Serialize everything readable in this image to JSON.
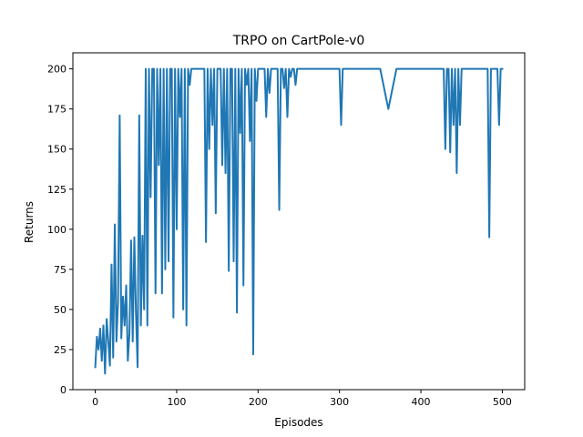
{
  "chart_data": {
    "type": "line",
    "title": "TRPO on CartPole-v0",
    "xlabel": "Episodes",
    "ylabel": "Returns",
    "xlim": [
      -27.5,
      527.5
    ],
    "ylim": [
      0,
      210
    ],
    "xticks": [
      0,
      100,
      200,
      300,
      400,
      500
    ],
    "yticks": [
      0,
      25,
      50,
      75,
      100,
      125,
      150,
      175,
      200
    ],
    "grid": false,
    "legend": "none",
    "series": [
      {
        "color": "#1f77b4",
        "x": [
          0,
          2,
          4,
          6,
          8,
          10,
          12,
          14,
          16,
          18,
          20,
          22,
          24,
          26,
          28,
          30,
          32,
          34,
          36,
          38,
          40,
          42,
          44,
          46,
          48,
          50,
          52,
          54,
          56,
          58,
          60,
          62,
          64,
          66,
          68,
          70,
          72,
          74,
          76,
          78,
          80,
          82,
          84,
          86,
          88,
          90,
          92,
          94,
          96,
          98,
          100,
          102,
          104,
          106,
          108,
          110,
          112,
          114,
          116,
          118,
          120,
          122,
          124,
          126,
          128,
          130,
          132,
          134,
          136,
          138,
          140,
          142,
          144,
          146,
          148,
          150,
          152,
          154,
          156,
          158,
          160,
          162,
          164,
          166,
          168,
          170,
          172,
          174,
          176,
          178,
          180,
          182,
          184,
          186,
          188,
          190,
          192,
          194,
          196,
          198,
          200,
          202,
          204,
          206,
          208,
          210,
          212,
          214,
          216,
          218,
          220,
          222,
          224,
          226,
          228,
          230,
          232,
          234,
          236,
          238,
          240,
          242,
          244,
          246,
          248,
          250,
          252,
          254,
          256,
          258,
          260,
          262,
          264,
          266,
          268,
          270,
          272,
          274,
          276,
          278,
          280,
          282,
          284,
          286,
          288,
          290,
          292,
          294,
          296,
          298,
          300,
          302,
          304,
          306,
          308,
          310,
          312,
          314,
          316,
          318,
          320,
          330,
          340,
          342,
          344,
          346,
          350,
          360,
          370,
          380,
          390,
          400,
          410,
          414,
          416,
          418,
          420,
          422,
          424,
          426,
          428,
          430,
          432,
          434,
          436,
          438,
          440,
          442,
          444,
          446,
          448,
          450,
          452,
          454,
          456,
          458,
          460,
          462,
          464,
          466,
          468,
          470,
          472,
          474,
          476,
          478,
          480,
          482,
          484,
          486,
          488,
          490,
          492,
          494,
          496,
          498,
          500
        ],
        "y": [
          14,
          33,
          25,
          38,
          18,
          40,
          10,
          44,
          30,
          15,
          78,
          20,
          103,
          30,
          55,
          171,
          32,
          58,
          40,
          65,
          18,
          35,
          93,
          30,
          95,
          48,
          14,
          171,
          40,
          96,
          50,
          200,
          40,
          200,
          120,
          200,
          200,
          60,
          200,
          140,
          200,
          60,
          200,
          75,
          200,
          80,
          200,
          200,
          45,
          200,
          100,
          200,
          170,
          200,
          50,
          200,
          40,
          200,
          190,
          200,
          200,
          200,
          200,
          200,
          200,
          200,
          200,
          200,
          92,
          200,
          150,
          200,
          165,
          200,
          110,
          200,
          200,
          200,
          140,
          200,
          135,
          200,
          74,
          200,
          200,
          80,
          200,
          48,
          200,
          160,
          200,
          65,
          200,
          190,
          200,
          155,
          200,
          22,
          200,
          180,
          200,
          200,
          200,
          200,
          200,
          170,
          200,
          185,
          200,
          200,
          200,
          200,
          200,
          112,
          200,
          200,
          188,
          200,
          170,
          200,
          195,
          200,
          200,
          190,
          200,
          200,
          200,
          200,
          200,
          200,
          200,
          200,
          200,
          200,
          200,
          200,
          200,
          200,
          200,
          200,
          200,
          200,
          200,
          200,
          200,
          200,
          200,
          200,
          200,
          200,
          200,
          165,
          200,
          200,
          200,
          200,
          200,
          200,
          200,
          200,
          200,
          200,
          200,
          200,
          200,
          200,
          200,
          175,
          200,
          200,
          200,
          200,
          200,
          200,
          200,
          200,
          200,
          200,
          200,
          200,
          200,
          150,
          200,
          200,
          148,
          200,
          165,
          200,
          135,
          200,
          165,
          200,
          200,
          200,
          200,
          200,
          200,
          200,
          200,
          200,
          200,
          200,
          200,
          200,
          200,
          200,
          200,
          200,
          95,
          200,
          200,
          200,
          200,
          200,
          165,
          200,
          200
        ]
      }
    ]
  }
}
